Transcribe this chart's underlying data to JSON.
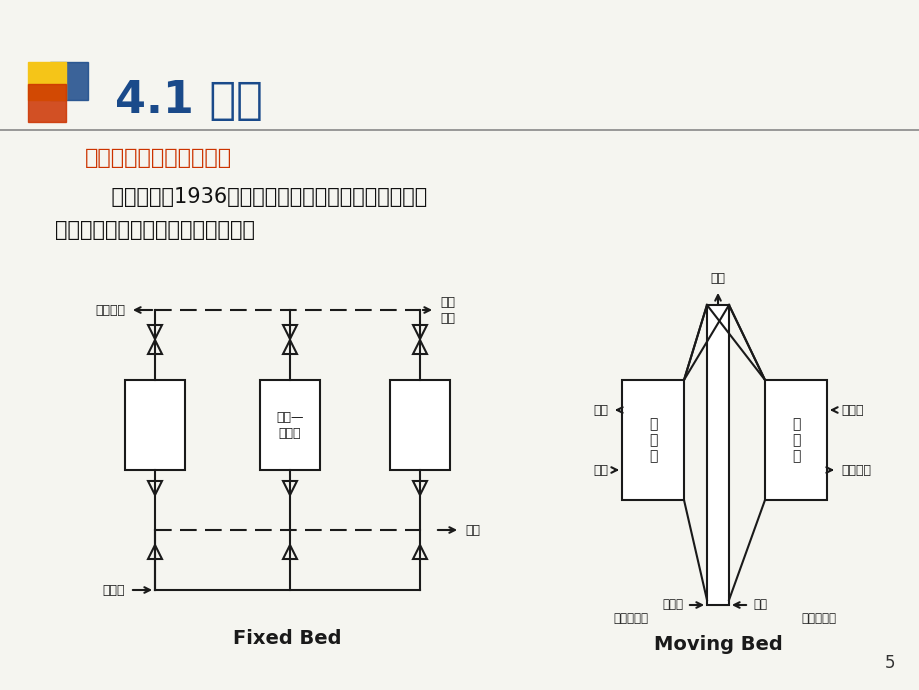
{
  "bg_color": "#f5f5f0",
  "title": "4.1 概述",
  "title_color": "#1a4a8a",
  "subtitle": "二、催化裂化的发展历程",
  "subtitle_color": "#cc3300",
  "body_line1": "    催化裂化自1936年实现工业化至今经历了四个阶段：",
  "body_line2": "固定床、移动床、流化床和提升管。",
  "body_color": "#111111",
  "fixed_bed_label": "Fixed Bed",
  "moving_bed_label": "Moving Bed",
  "page_number": "5",
  "decorator_colors": [
    "#f5c518",
    "#cc3300",
    "#1a4a8a"
  ]
}
